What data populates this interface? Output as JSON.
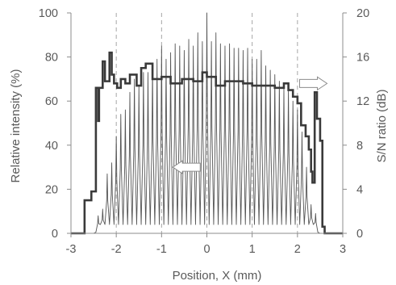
{
  "chart_data": {
    "type": "line",
    "xlabel": "Position, X  (mm)",
    "ylabel": "Relative  intensity  (%)",
    "y2label": "S/N ratio  (dB)",
    "xlim": [
      -3,
      3
    ],
    "ylim": [
      0,
      100
    ],
    "y2lim": [
      0,
      20
    ],
    "x_ticks": [
      "-3",
      "-2",
      "-1",
      "0",
      "1",
      "2",
      "3"
    ],
    "y_ticks": [
      "0",
      "20",
      "40",
      "60",
      "80",
      "100"
    ],
    "y2_ticks": [
      "0",
      "4",
      "8",
      "12",
      "16",
      "20"
    ],
    "grid": "vertical dashed",
    "colors": {
      "axis": "#8c8c8c",
      "grid": "#a6a6a6",
      "intensity": "#555555",
      "snr": "#3a3a3a",
      "text": "#595959"
    },
    "annotations": [
      {
        "type": "arrow",
        "direction": "left",
        "points_to": "left axis",
        "at": {
          "x": -0.45,
          "y": 30
        }
      },
      {
        "type": "arrow",
        "direction": "right",
        "points_to": "right axis",
        "at": {
          "x": 2.35,
          "y": 68
        }
      }
    ],
    "series": [
      {
        "axis": "left",
        "style": "thin",
        "peak_x": [
          -2.4,
          -2.3,
          -2.2,
          -2.1,
          -2.0,
          -1.9,
          -1.8,
          -1.7,
          -1.6,
          -1.5,
          -1.4,
          -1.3,
          -1.2,
          -1.1,
          -1.0,
          -0.9,
          -0.8,
          -0.7,
          -0.6,
          -0.5,
          -0.4,
          -0.3,
          -0.2,
          -0.1,
          0.0,
          0.1,
          0.2,
          0.3,
          0.4,
          0.5,
          0.6,
          0.7,
          0.8,
          0.9,
          1.0,
          1.1,
          1.2,
          1.3,
          1.4,
          1.5,
          1.6,
          1.7,
          1.8,
          1.9,
          2.0,
          2.1,
          2.2,
          2.3,
          2.4
        ],
        "peak_y": [
          8,
          11,
          27,
          32,
          44,
          54,
          56,
          64,
          70,
          67,
          73,
          73,
          76,
          79,
          85,
          79,
          82,
          86,
          85,
          83,
          88,
          85,
          91,
          87,
          100,
          87,
          91,
          86,
          85,
          86,
          84,
          84,
          83,
          84,
          79,
          79,
          83,
          76,
          74,
          72,
          69,
          66,
          66,
          60,
          56,
          46,
          30,
          13,
          9
        ],
        "valley_y": 4
      },
      {
        "axis": "right",
        "style": "thick step",
        "x": [
          -3.0,
          -2.7,
          -2.55,
          -2.45,
          -2.4,
          -2.38,
          -2.3,
          -2.25,
          -2.15,
          -2.1,
          -2.05,
          -1.98,
          -1.9,
          -1.8,
          -1.7,
          -1.55,
          -1.45,
          -1.35,
          -1.2,
          -1.0,
          -0.8,
          -0.55,
          -0.3,
          -0.1,
          0.0,
          0.2,
          0.4,
          0.6,
          0.8,
          1.0,
          1.2,
          1.5,
          1.7,
          1.8,
          1.9,
          2.0,
          2.08,
          2.18,
          2.25,
          2.3,
          2.33,
          2.38,
          2.43,
          2.5,
          2.55,
          2.6,
          3.0
        ],
        "y": [
          0,
          3,
          3.8,
          13.2,
          10.2,
          13.2,
          15.6,
          13.8,
          16.4,
          14.4,
          13.6,
          13.2,
          14.0,
          13.6,
          14.4,
          13.4,
          15.0,
          15.4,
          14.0,
          14.2,
          13.6,
          14.0,
          13.8,
          14.6,
          14.2,
          13.4,
          13.8,
          13.8,
          13.6,
          13.4,
          13.4,
          13.2,
          13.6,
          13.0,
          12.4,
          11.8,
          9.8,
          8.8,
          7.6,
          5.6,
          4.6,
          12.8,
          10.4,
          8.4,
          0.6,
          0,
          0
        ]
      }
    ]
  }
}
